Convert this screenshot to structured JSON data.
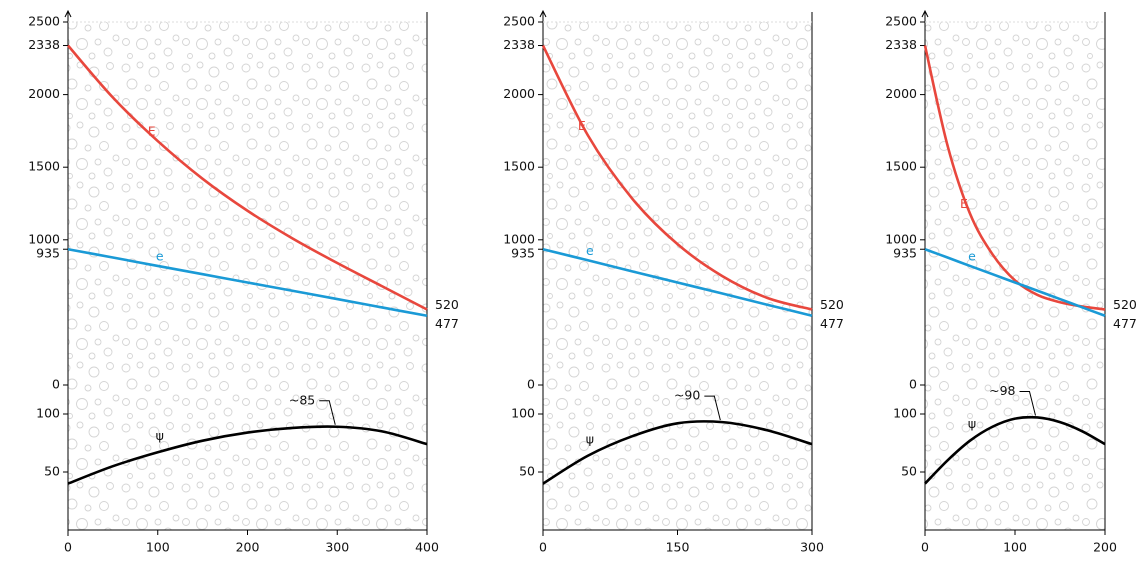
{
  "chart_data": [
    {
      "type": "line",
      "xlim": [
        0,
        400
      ],
      "xticks": [
        0,
        100,
        200,
        300,
        400
      ],
      "ylim": [
        0,
        2500
      ],
      "yticks": [
        0,
        935,
        1000,
        1500,
        2000,
        2338,
        2500
      ],
      "y2lim": [
        0,
        125
      ],
      "y2ticks": [
        50,
        100
      ],
      "x": [
        0,
        50,
        100,
        150,
        200,
        250,
        300,
        350,
        400
      ],
      "series": [
        {
          "name": "E",
          "color": "#e8473d",
          "values": [
            2338,
            1980,
            1680,
            1420,
            1200,
            1010,
            840,
            680,
            520
          ]
        },
        {
          "name": "e",
          "color": "#1a9ad6",
          "values": [
            935,
            878,
            820,
            763,
            706,
            649,
            592,
            534,
            477
          ]
        },
        {
          "name": "ψ",
          "color": "#000000",
          "axis": "y2",
          "values": [
            40,
            55,
            67,
            77,
            84,
            88,
            89,
            85,
            74
          ]
        }
      ],
      "annotations": [
        {
          "text": "~85"
        }
      ]
    },
    {
      "type": "line",
      "xlim": [
        0,
        300
      ],
      "xticks": [
        0,
        150,
        300
      ],
      "ylim": [
        0,
        2500
      ],
      "yticks": [
        0,
        935,
        1000,
        1500,
        2000,
        2338,
        2500
      ],
      "y2lim": [
        0,
        125
      ],
      "y2ticks": [
        50,
        100
      ],
      "x": [
        0,
        50,
        100,
        150,
        200,
        250,
        300
      ],
      "series": [
        {
          "name": "E",
          "color": "#e8473d",
          "values": [
            2338,
            1720,
            1280,
            970,
            750,
            600,
            520
          ]
        },
        {
          "name": "e",
          "color": "#1a9ad6",
          "values": [
            935,
            859,
            782,
            706,
            630,
            553,
            477
          ]
        },
        {
          "name": "ψ",
          "color": "#000000",
          "axis": "y2",
          "values": [
            40,
            64,
            81,
            92,
            93,
            86,
            74
          ]
        }
      ],
      "annotations": [
        {
          "text": "~90"
        }
      ]
    },
    {
      "type": "line",
      "xlim": [
        0,
        200
      ],
      "xticks": [
        0,
        100,
        200
      ],
      "ylim": [
        0,
        2500
      ],
      "yticks": [
        0,
        935,
        1000,
        1500,
        2000,
        2338,
        2500
      ],
      "y2lim": [
        0,
        125
      ],
      "y2ticks": [
        50,
        100
      ],
      "x": [
        0,
        25,
        50,
        75,
        100,
        125,
        150,
        175,
        200
      ],
      "series": [
        {
          "name": "E",
          "color": "#e8473d",
          "values": [
            2338,
            1650,
            1180,
            900,
            720,
            620,
            570,
            540,
            520
          ]
        },
        {
          "name": "e",
          "color": "#1a9ad6",
          "values": [
            935,
            878,
            820,
            763,
            706,
            649,
            592,
            534,
            477
          ]
        },
        {
          "name": "ψ",
          "color": "#000000",
          "axis": "y2",
          "values": [
            40,
            60,
            77,
            89,
            96,
            97,
            93,
            85,
            74
          ]
        }
      ],
      "annotations": [
        {
          "text": "~98"
        }
      ]
    }
  ]
}
